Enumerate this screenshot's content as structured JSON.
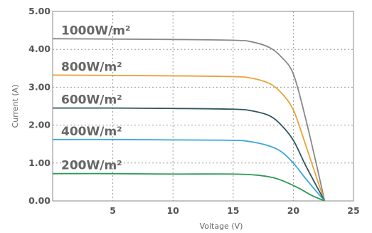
{
  "chart_data": {
    "type": "line",
    "xlabel": "Voltage (V)",
    "ylabel": "Current (A)",
    "xlim": [
      0,
      25
    ],
    "ylim": [
      0,
      5
    ],
    "x_ticks": [
      "5",
      "10",
      "15",
      "20",
      "25"
    ],
    "y_ticks": [
      "0.00",
      "1.00",
      "2.00",
      "3.00",
      "4.00",
      "5.00"
    ],
    "grid": true,
    "series": [
      {
        "name": "1000W/m²",
        "color": "#888888",
        "points": [
          [
            0,
            4.28
          ],
          [
            5,
            4.27
          ],
          [
            10,
            4.26
          ],
          [
            15,
            4.24
          ],
          [
            16.5,
            4.2
          ],
          [
            18,
            4.05
          ],
          [
            19,
            3.8
          ],
          [
            20,
            3.35
          ],
          [
            21,
            2.2
          ],
          [
            22,
            0.85
          ],
          [
            22.6,
            0
          ]
        ]
      },
      {
        "name": "800W/m²",
        "color": "#e8a33d",
        "points": [
          [
            0,
            3.32
          ],
          [
            5,
            3.31
          ],
          [
            10,
            3.3
          ],
          [
            15,
            3.28
          ],
          [
            16.5,
            3.24
          ],
          [
            18,
            3.1
          ],
          [
            19,
            2.85
          ],
          [
            20,
            2.4
          ],
          [
            21,
            1.5
          ],
          [
            22,
            0.55
          ],
          [
            22.6,
            0
          ]
        ]
      },
      {
        "name": "600W/m²",
        "color": "#2f5560",
        "points": [
          [
            0,
            2.45
          ],
          [
            5,
            2.45
          ],
          [
            10,
            2.44
          ],
          [
            15,
            2.42
          ],
          [
            16.5,
            2.38
          ],
          [
            18,
            2.25
          ],
          [
            19,
            2.0
          ],
          [
            20,
            1.6
          ],
          [
            21,
            0.95
          ],
          [
            22,
            0.35
          ],
          [
            22.6,
            0
          ]
        ]
      },
      {
        "name": "400W/m²",
        "color": "#3aa7d8",
        "points": [
          [
            0,
            1.62
          ],
          [
            5,
            1.62
          ],
          [
            10,
            1.61
          ],
          [
            15,
            1.6
          ],
          [
            16.5,
            1.56
          ],
          [
            18,
            1.45
          ],
          [
            19,
            1.3
          ],
          [
            20,
            1.0
          ],
          [
            21,
            0.6
          ],
          [
            22,
            0.22
          ],
          [
            22.6,
            0
          ]
        ]
      },
      {
        "name": "200W/m²",
        "color": "#2e9a55",
        "points": [
          [
            0,
            0.72
          ],
          [
            5,
            0.72
          ],
          [
            10,
            0.71
          ],
          [
            15,
            0.71
          ],
          [
            17,
            0.68
          ],
          [
            18.5,
            0.6
          ],
          [
            19.5,
            0.48
          ],
          [
            20.5,
            0.33
          ],
          [
            21.5,
            0.15
          ],
          [
            22.6,
            0
          ]
        ]
      }
    ]
  }
}
